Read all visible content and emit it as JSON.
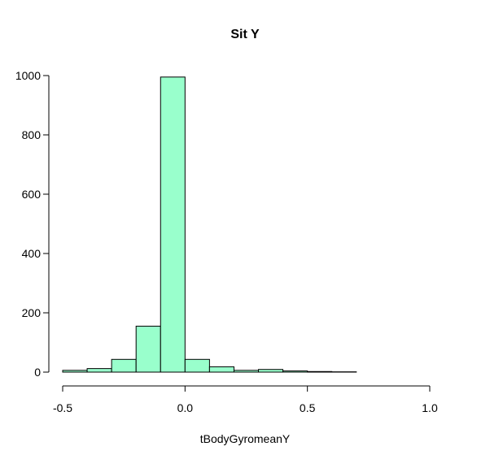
{
  "chart_data": {
    "type": "bar",
    "title": "Sit Y",
    "xlabel": "tBodyGyromeanY",
    "ylabel": "",
    "bin_edges": [
      -0.5,
      -0.4,
      -0.3,
      -0.2,
      -0.1,
      0.0,
      0.1,
      0.2,
      0.3,
      0.4,
      0.5,
      0.6,
      0.7,
      0.8,
      0.9,
      1.0
    ],
    "values": [
      6,
      12,
      43,
      155,
      995,
      43,
      18,
      6,
      9,
      4,
      2,
      1,
      0,
      0,
      0
    ],
    "xlim": [
      -0.5,
      1.0
    ],
    "ylim": [
      0,
      1000
    ],
    "x_ticks": [
      -0.5,
      0.0,
      0.5,
      1.0
    ],
    "x_tick_labels": [
      "-0.5",
      "0.0",
      "0.5",
      "1.0"
    ],
    "y_ticks": [
      0,
      200,
      400,
      600,
      800,
      1000
    ],
    "y_tick_labels": [
      "0",
      "200",
      "400",
      "600",
      "800",
      "1000"
    ],
    "grid": false,
    "bar_color": "#99ffcc"
  }
}
